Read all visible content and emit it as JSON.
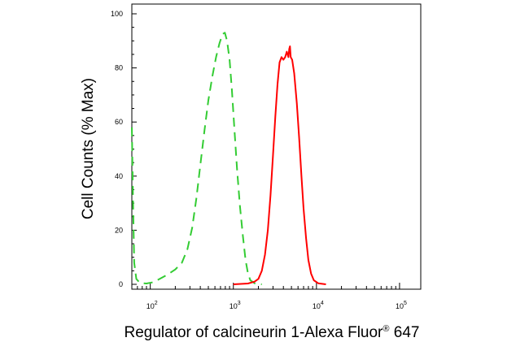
{
  "chart_data": {
    "type": "line",
    "title": "",
    "xlabel": {
      "prefix": "Regulator of calcineurin 1-Alexa Fluor",
      "superscript": "®",
      "suffix": " 647"
    },
    "ylabel": "Cell Counts (% Max)",
    "x_scale": "log",
    "xlim": [
      60,
      180000
    ],
    "ylim": [
      0,
      100
    ],
    "x_ticks": [
      {
        "base": "10",
        "exp": "2",
        "value": 100
      },
      {
        "base": "10",
        "exp": "3",
        "value": 1000
      },
      {
        "base": "10",
        "exp": "4",
        "value": 10000
      },
      {
        "base": "10",
        "exp": "5",
        "value": 100000
      }
    ],
    "y_ticks": [
      0,
      20,
      40,
      60,
      80,
      100
    ],
    "grid": false,
    "legend": "none",
    "series": [
      {
        "style": "dashed",
        "color": "#33cc33",
        "points": [
          [
            60,
            58
          ],
          [
            62,
            30
          ],
          [
            64,
            8
          ],
          [
            68,
            2
          ],
          [
            75,
            0.5
          ],
          [
            90,
            0.3
          ],
          [
            110,
            0.8
          ],
          [
            130,
            2
          ],
          [
            160,
            3.5
          ],
          [
            200,
            5.5
          ],
          [
            240,
            8
          ],
          [
            280,
            13
          ],
          [
            320,
            21
          ],
          [
            360,
            32
          ],
          [
            400,
            44
          ],
          [
            450,
            57
          ],
          [
            500,
            68
          ],
          [
            560,
            77
          ],
          [
            620,
            84
          ],
          [
            680,
            89
          ],
          [
            740,
            92.5
          ],
          [
            790,
            93
          ],
          [
            840,
            90
          ],
          [
            900,
            83
          ],
          [
            960,
            72
          ],
          [
            1030,
            57
          ],
          [
            1110,
            42
          ],
          [
            1200,
            29
          ],
          [
            1300,
            18
          ],
          [
            1400,
            9
          ],
          [
            1500,
            4
          ],
          [
            1600,
            1.5
          ],
          [
            1800,
            0.4
          ],
          [
            2200,
            0
          ]
        ]
      },
      {
        "style": "solid",
        "color": "#ff0000",
        "points": [
          [
            1000,
            0
          ],
          [
            1500,
            0.3
          ],
          [
            1800,
            1
          ],
          [
            2000,
            2
          ],
          [
            2200,
            5
          ],
          [
            2400,
            11
          ],
          [
            2600,
            20
          ],
          [
            2800,
            33
          ],
          [
            3000,
            48
          ],
          [
            3200,
            62
          ],
          [
            3400,
            74
          ],
          [
            3600,
            82
          ],
          [
            3800,
            84
          ],
          [
            4000,
            83
          ],
          [
            4200,
            84
          ],
          [
            4400,
            86
          ],
          [
            4600,
            84
          ],
          [
            4700,
            87
          ],
          [
            4800,
            88
          ],
          [
            4900,
            84
          ],
          [
            5100,
            83
          ],
          [
            5400,
            78
          ],
          [
            5800,
            67
          ],
          [
            6200,
            54
          ],
          [
            6600,
            40
          ],
          [
            7000,
            28
          ],
          [
            7500,
            17
          ],
          [
            8000,
            9
          ],
          [
            8600,
            4
          ],
          [
            9300,
            1.5
          ],
          [
            10500,
            0.4
          ],
          [
            13000,
            0
          ]
        ]
      }
    ]
  }
}
